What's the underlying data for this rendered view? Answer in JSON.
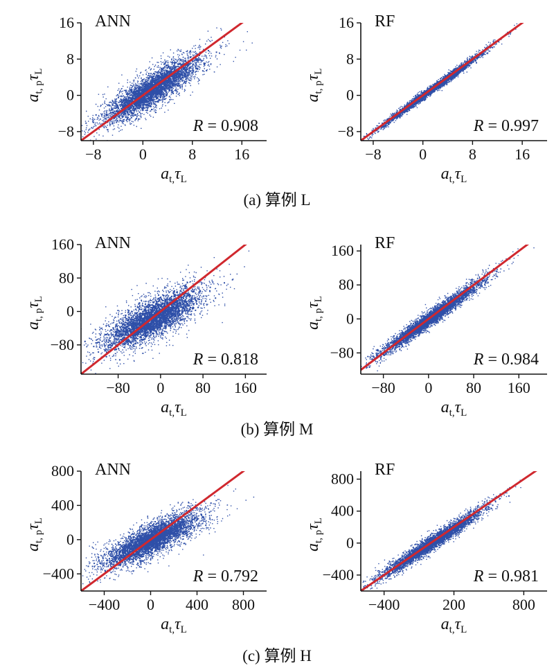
{
  "figure": {
    "captions": [
      "(a) 算例 L",
      "(b) 算例 M",
      "(c) 算例 H"
    ]
  },
  "axis_labels": {
    "x": {
      "main": "a",
      "sub": "t,",
      "tau": "τ",
      "tau_sub": "L"
    },
    "y": {
      "main": "a",
      "sub": "t, p",
      "tau": "τ",
      "tau_sub": "L"
    }
  },
  "colors": {
    "points": "#2e4fa8",
    "fit_line": "#d0282e",
    "axis": "#111111"
  },
  "chart_data": [
    {
      "type": "scatter",
      "title": "ANN",
      "r_label": "R = 0.908",
      "r_value": 0.908,
      "xlim": [
        -10,
        20
      ],
      "ylim": [
        -10,
        16
      ],
      "xticks": [
        -8,
        0,
        8,
        16
      ],
      "yticks": [
        -8,
        0,
        8,
        16
      ],
      "xtick_labels": [
        "−8",
        "0",
        "8",
        "16"
      ],
      "ytick_labels": [
        "−8",
        "0",
        "8",
        "16"
      ],
      "reference_line": "y = x",
      "spread": 2.2,
      "slope": 0.82
    },
    {
      "type": "scatter",
      "title": "RF",
      "r_label": "R = 0.997",
      "r_value": 0.997,
      "xlim": [
        -10,
        20
      ],
      "ylim": [
        -10,
        16
      ],
      "xticks": [
        -8,
        0,
        8,
        16
      ],
      "yticks": [
        -8,
        0,
        8,
        16
      ],
      "xtick_labels": [
        "−8",
        "0",
        "8",
        "16"
      ],
      "ytick_labels": [
        "−8",
        "0",
        "8",
        "16"
      ],
      "reference_line": "y = x",
      "spread": 0.5,
      "slope": 1.0
    },
    {
      "type": "scatter",
      "title": "ANN",
      "r_label": "R = 0.818",
      "r_value": 0.818,
      "xlim": [
        -150,
        200
      ],
      "ylim": [
        -150,
        160
      ],
      "xticks": [
        -80,
        0,
        80,
        160
      ],
      "yticks": [
        -80,
        0,
        80,
        160
      ],
      "xtick_labels": [
        "−80",
        "0",
        "80",
        "160"
      ],
      "ytick_labels": [
        "−80",
        "0",
        "80",
        "160"
      ],
      "reference_line": "y = x",
      "spread": 28,
      "slope": 0.6
    },
    {
      "type": "scatter",
      "title": "RF",
      "r_label": "R = 0.984",
      "r_value": 0.984,
      "xlim": [
        -120,
        210
      ],
      "ylim": [
        -130,
        175
      ],
      "xticks": [
        -80,
        0,
        80,
        160
      ],
      "yticks": [
        -80,
        0,
        80,
        160
      ],
      "xtick_labels": [
        "−80",
        "0",
        "80",
        "160"
      ],
      "ytick_labels": [
        "−80",
        "0",
        "80",
        "160"
      ],
      "reference_line": "y = x",
      "spread": 11,
      "slope": 0.95
    },
    {
      "type": "scatter",
      "title": "ANN",
      "r_label": "R = 0.792",
      "r_value": 0.792,
      "xlim": [
        -600,
        1000
      ],
      "ylim": [
        -600,
        800
      ],
      "xticks": [
        -400,
        0,
        400,
        800
      ],
      "yticks": [
        -400,
        0,
        400,
        800
      ],
      "xtick_labels": [
        "−400",
        "0",
        "400",
        "800"
      ],
      "ytick_labels": [
        "−400",
        "0",
        "400",
        "800"
      ],
      "reference_line": "y = x",
      "spread": 110,
      "slope": 0.62
    },
    {
      "type": "scatter",
      "title": "RF",
      "r_label": "R = 0.981",
      "r_value": 0.981,
      "xlim": [
        -600,
        1000
      ],
      "ylim": [
        -600,
        900
      ],
      "xticks": [
        -400,
        200,
        800
      ],
      "yticks": [
        -400,
        0,
        400,
        800
      ],
      "xtick_labels": [
        "−400",
        "200",
        "800"
      ],
      "ytick_labels": [
        "−400",
        "0",
        "400",
        "800"
      ],
      "reference_line": "y = x",
      "spread": 55,
      "slope": 0.95
    }
  ]
}
